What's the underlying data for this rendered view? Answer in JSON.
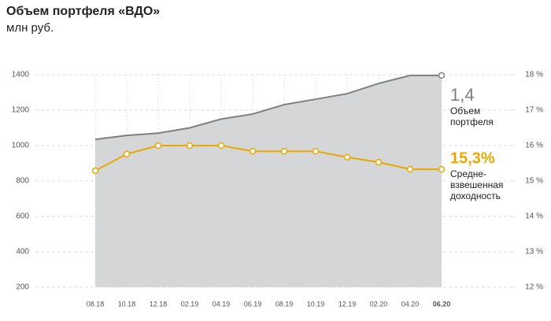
{
  "chart_data": {
    "type": "area-line",
    "title": "Объем портфеля «ВДО»",
    "subtitle": "млн руб.",
    "categories": [
      "08.18",
      "10.18",
      "12.18",
      "02.19",
      "04.19",
      "06.19",
      "08.19",
      "10.19",
      "12.19",
      "02.20",
      "04.20",
      "06.20"
    ],
    "ylim": [
      200,
      1400
    ],
    "yticks": [
      200,
      400,
      600,
      800,
      1000,
      1200,
      1400
    ],
    "y2lim": [
      12,
      18
    ],
    "y2ticks": [
      {
        "value": 12,
        "label": "12 %"
      },
      {
        "value": 13,
        "label": "13 %"
      },
      {
        "value": 14,
        "label": "14 %"
      },
      {
        "value": 15,
        "label": "15 %"
      },
      {
        "value": 16,
        "label": "16 %"
      },
      {
        "value": 17,
        "label": "17 %"
      },
      {
        "value": 18,
        "label": "18 %"
      }
    ],
    "grid": true,
    "series": [
      {
        "label_lines": [
          "Объем",
          "портфеля"
        ],
        "end_label": "1,4",
        "type": "area",
        "axis": "y",
        "color": "#808080",
        "fill": "#d5d6d8",
        "marker": "last",
        "values": [
          1035,
          1057,
          1070,
          1100,
          1150,
          1178,
          1231,
          1262,
          1293,
          1351,
          1396,
          1396
        ]
      },
      {
        "label_lines": [
          "Средне-",
          "взвешенная",
          "доходность"
        ],
        "end_label": "15,3%",
        "type": "line",
        "axis": "y2",
        "color": "#e8a800",
        "marker": "all",
        "values": [
          15.29,
          15.76,
          16.0,
          16.0,
          16.0,
          15.84,
          15.84,
          15.84,
          15.67,
          15.53,
          15.33,
          15.33
        ]
      }
    ]
  }
}
